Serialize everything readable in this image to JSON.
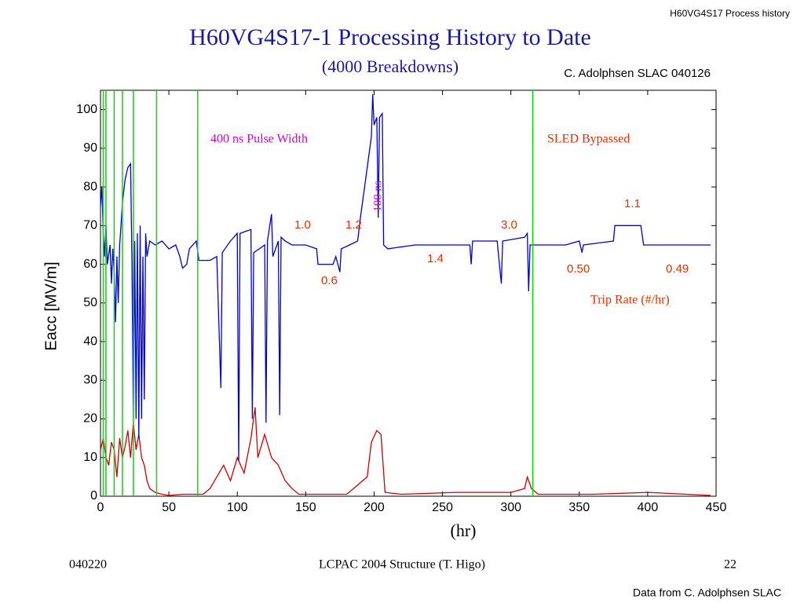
{
  "header": "H60VG4S17 Process history",
  "credit": "C. Adolphsen SLAC 040126",
  "footer": {
    "left": "040220",
    "center": "LCPAC 2004  Structure (T. Higo)",
    "right": "22",
    "note": "Data from C. Adolphsen SLAC"
  },
  "chart_data": {
    "type": "line",
    "title": "H60VG4S17-1 Processing History to Date",
    "subtitle": "(4000 Breakdowns)",
    "x_label": "(hr)",
    "y_label": "Eacc [MV/m]",
    "xlim": [
      0,
      450
    ],
    "ylim": [
      0,
      105
    ],
    "xticks": [
      0,
      50,
      100,
      150,
      200,
      250,
      300,
      350,
      400,
      450
    ],
    "yticks": [
      0,
      10,
      20,
      30,
      40,
      50,
      60,
      70,
      80,
      90,
      100
    ],
    "vlines": [
      2,
      4,
      10,
      16,
      24,
      41,
      71,
      316
    ],
    "vline_color": "#00dd00",
    "series": [
      {
        "color": "#0000cc",
        "x": [
          0,
          1,
          2,
          3,
          4,
          5,
          7,
          8,
          9,
          10,
          11,
          12,
          13,
          14,
          15,
          16,
          18,
          20,
          22,
          23,
          24,
          25,
          26,
          27,
          28,
          29,
          30,
          31,
          32,
          33,
          34,
          36,
          40,
          45,
          50,
          55,
          58,
          60,
          63,
          65,
          70,
          72,
          80,
          85,
          88,
          89,
          95,
          100,
          101,
          102,
          110,
          111,
          112,
          120,
          121,
          122,
          125,
          126,
          130,
          131,
          132,
          135,
          140,
          150,
          158,
          159,
          165,
          170,
          172,
          175,
          176,
          182,
          188,
          190,
          195,
          198,
          199,
          200,
          202,
          203,
          204,
          206,
          207,
          210,
          230,
          250,
          270,
          271,
          272,
          290,
          293,
          294,
          310,
          312,
          313,
          314,
          320,
          340,
          350,
          352,
          353,
          375,
          376,
          380,
          395,
          397,
          420,
          446
        ],
        "values": [
          75,
          80,
          68,
          62,
          70,
          60,
          65,
          55,
          64,
          58,
          45,
          62,
          50,
          65,
          70,
          76,
          82,
          85,
          86,
          60,
          18,
          66,
          20,
          68,
          15,
          70,
          20,
          62,
          25,
          68,
          62,
          66,
          65,
          66,
          64,
          65,
          62,
          59,
          60,
          64,
          66,
          61,
          61,
          62,
          28,
          63,
          66,
          68,
          9,
          68,
          69,
          20,
          63,
          65,
          19,
          66,
          73,
          62,
          66,
          21,
          67,
          66,
          65,
          65,
          64,
          60,
          60,
          60,
          62,
          58,
          64,
          65,
          66,
          72,
          85,
          93,
          104,
          96,
          98,
          72,
          98,
          99,
          65,
          64,
          65,
          65,
          65,
          60,
          66,
          66,
          55,
          66,
          67,
          68,
          53,
          65,
          65,
          65,
          66,
          63,
          65,
          66,
          70,
          70,
          70,
          65,
          65,
          65
        ]
      },
      {
        "color": "#cc0000",
        "x": [
          0,
          2,
          4,
          6,
          8,
          10,
          12,
          14,
          16,
          18,
          20,
          22,
          24,
          26,
          28,
          30,
          32,
          34,
          36,
          40,
          45,
          50,
          60,
          70,
          75,
          80,
          85,
          90,
          95,
          100,
          105,
          110,
          113,
          115,
          120,
          125,
          130,
          135,
          140,
          145,
          160,
          180,
          195,
          198,
          202,
          205,
          208,
          220,
          260,
          300,
          310,
          312,
          315,
          320,
          360,
          400,
          440,
          446
        ],
        "values": [
          12,
          15,
          10,
          8,
          14,
          12,
          5,
          15,
          10,
          13,
          17,
          10,
          19,
          12,
          16,
          10,
          8,
          4,
          2,
          1,
          0.5,
          0.2,
          0.5,
          0.5,
          0.5,
          2,
          5,
          8,
          4,
          10,
          6,
          15,
          23,
          10,
          16,
          10,
          8,
          4,
          2,
          0.5,
          0.5,
          0.5,
          5,
          14,
          17,
          16,
          1,
          0.5,
          1,
          1,
          2,
          5,
          2,
          0.5,
          0.5,
          1,
          0.3,
          0.2
        ]
      }
    ],
    "annotations": [
      {
        "text": "400 ns Pulse Width",
        "color": "#cc00cc"
      },
      {
        "text": "100 ns",
        "color": "#cc00cc"
      },
      {
        "text": "SLED Bypassed",
        "color": "#e03000"
      },
      {
        "text": "1.0",
        "color": "#e03000"
      },
      {
        "text": "1.2",
        "color": "#e03000"
      },
      {
        "text": "0.6",
        "color": "#e03000"
      },
      {
        "text": "1.4",
        "color": "#e03000"
      },
      {
        "text": "3.0",
        "color": "#e03000"
      },
      {
        "text": "0.50",
        "color": "#e03000"
      },
      {
        "text": "1.1",
        "color": "#e03000"
      },
      {
        "text": "0.49",
        "color": "#e03000"
      },
      {
        "text": "Trip Rate (#/hr)",
        "color": "#e03000"
      }
    ]
  }
}
